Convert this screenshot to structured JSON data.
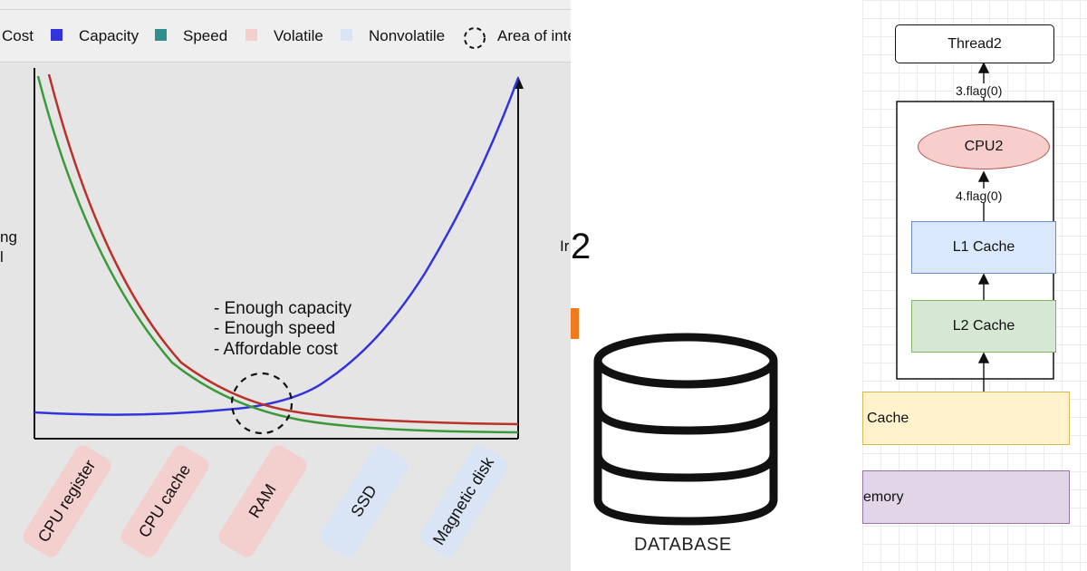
{
  "memory_hierarchy_chart": {
    "legend": [
      {
        "label": "Cost",
        "color": "#c0392b"
      },
      {
        "label": "Capacity",
        "color": "#3333dd"
      },
      {
        "label": "Speed",
        "color": "#2f8f8f"
      },
      {
        "label": "Volatile",
        "color": "#f3cfcd"
      },
      {
        "label": "Nonvolatile",
        "color": "#d9e4f4"
      },
      {
        "label": "Area of inte",
        "color": "#111111"
      }
    ],
    "left_axis_fragment_1": "ng",
    "left_axis_fragment_2": "l",
    "right_axis_fragment": "Ir",
    "annotation_lines": [
      "- Enough capacity",
      "- Enough speed",
      "- Affordable cost"
    ],
    "categories": [
      {
        "label": "CPU register",
        "type": "volatile"
      },
      {
        "label": "CPU cache",
        "type": "volatile"
      },
      {
        "label": "RAM",
        "type": "volatile"
      },
      {
        "label": "SSD",
        "type": "nonvolatile"
      },
      {
        "label": "Magnetic disk",
        "type": "nonvolatile"
      }
    ],
    "series_colors": {
      "cost": "#c0392b",
      "speed": "#3a9a3a",
      "capacity": "#3333dd"
    }
  },
  "database_panel": {
    "fragment_number": "2",
    "label": "DATABASE"
  },
  "cache_diagram": {
    "thread_label": "Thread2",
    "flag_top": "3.flag(0)",
    "cpu_label": "CPU2",
    "flag_mid": "4.flag(0)",
    "l1_label": "L1 Cache",
    "l2_label": "L2 Cache",
    "l3_label": "Cache",
    "memory_label": "emory"
  }
}
